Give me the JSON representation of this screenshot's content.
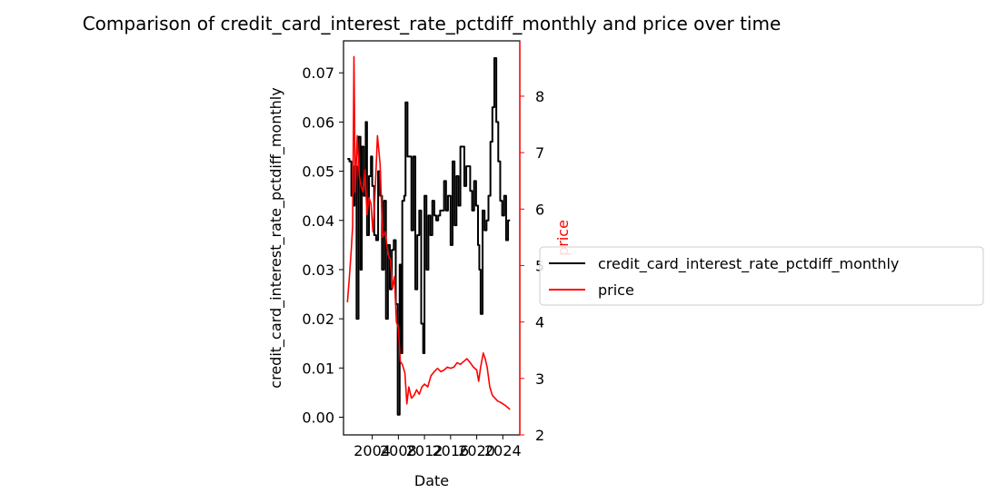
{
  "chart_data": {
    "type": "line",
    "title": "Comparison of credit_card_interest_rate_pctdiff_monthly and price over time",
    "xlabel": "Date",
    "ylabel_left": "credit_card_interest_rate_pctdiff_monthly",
    "ylabel_right": "price",
    "xlim": [
      1999.6,
      2026.6
    ],
    "ylim_left": [
      -0.0036,
      0.0765
    ],
    "ylim_right": [
      2.0,
      8.98
    ],
    "x_ticks": [
      2004,
      2008,
      2012,
      2016,
      2020,
      2024
    ],
    "x_tick_labels": [
      "2004",
      "2008",
      "2012",
      "2016",
      "2020",
      "2024"
    ],
    "y_ticks_left": [
      0.0,
      0.01,
      0.02,
      0.03,
      0.04,
      0.05,
      0.06,
      0.07
    ],
    "y_tick_labels_left": [
      "0.00",
      "0.01",
      "0.02",
      "0.03",
      "0.04",
      "0.05",
      "0.06",
      "0.07"
    ],
    "y_ticks_right": [
      2,
      3,
      4,
      5,
      6,
      7,
      8
    ],
    "y_tick_labels_right": [
      "2",
      "3",
      "4",
      "5",
      "6",
      "7",
      "8"
    ],
    "legend_placement": "center-right (outside)",
    "grid": false,
    "series": [
      {
        "name": "credit_card_interest_rate_pctdiff_monthly",
        "axis": "left",
        "color": "#000000",
        "step": true,
        "x": [
          2000.2,
          2000.5,
          2000.8,
          2001.1,
          2001.3,
          2001.6,
          2001.9,
          2002.2,
          2002.4,
          2002.7,
          2003.0,
          2003.2,
          2003.5,
          2003.8,
          2004.0,
          2004.3,
          2004.6,
          2004.9,
          2005.2,
          2005.5,
          2005.8,
          2006.1,
          2006.4,
          2006.7,
          2007.0,
          2007.3,
          2007.6,
          2007.9,
          2008.2,
          2008.4,
          2008.6,
          2008.9,
          2009.1,
          2009.4,
          2009.7,
          2010.0,
          2010.3,
          2010.6,
          2010.9,
          2011.2,
          2011.5,
          2011.8,
          2012.0,
          2012.3,
          2012.6,
          2012.9,
          2013.2,
          2013.5,
          2013.8,
          2014.1,
          2014.4,
          2014.7,
          2015.0,
          2015.3,
          2015.6,
          2016.0,
          2016.3,
          2016.6,
          2016.9,
          2017.2,
          2017.5,
          2017.8,
          2018.1,
          2018.4,
          2018.7,
          2019.0,
          2019.3,
          2019.6,
          2019.9,
          2020.2,
          2020.4,
          2020.6,
          2020.9,
          2021.2,
          2021.5,
          2021.8,
          2022.1,
          2022.4,
          2022.7,
          2023.0,
          2023.3,
          2023.6,
          2023.9,
          2024.2,
          2024.5,
          2024.8,
          2025.1
        ],
        "y": [
          0.0525,
          0.052,
          0.045,
          0.043,
          0.051,
          0.02,
          0.057,
          0.03,
          0.055,
          0.045,
          0.06,
          0.037,
          0.049,
          0.053,
          0.047,
          0.037,
          0.036,
          0.05,
          0.045,
          0.03,
          0.044,
          0.02,
          0.035,
          0.026,
          0.034,
          0.036,
          0.023,
          0.0005,
          0.031,
          0.013,
          0.044,
          0.045,
          0.064,
          0.053,
          0.053,
          0.038,
          0.053,
          0.026,
          0.037,
          0.042,
          0.019,
          0.013,
          0.045,
          0.03,
          0.041,
          0.037,
          0.044,
          0.041,
          0.04,
          0.041,
          0.042,
          0.042,
          0.048,
          0.042,
          0.045,
          0.035,
          0.052,
          0.039,
          0.049,
          0.043,
          0.055,
          0.055,
          0.047,
          0.051,
          0.051,
          0.046,
          0.042,
          0.048,
          0.043,
          0.035,
          0.03,
          0.021,
          0.042,
          0.038,
          0.04,
          0.045,
          0.056,
          0.063,
          0.073,
          0.06,
          0.052,
          0.044,
          0.041,
          0.045,
          0.036,
          0.04,
          0.04
        ]
      },
      {
        "name": "price",
        "axis": "right",
        "color": "#ff0000",
        "step": false,
        "x": [
          2000.2,
          2000.5,
          2000.8,
          2001.0,
          2001.2,
          2001.4,
          2001.7,
          2002.0,
          2002.3,
          2002.6,
          2002.9,
          2003.2,
          2003.5,
          2003.8,
          2004.1,
          2004.4,
          2004.8,
          2005.2,
          2005.6,
          2006.0,
          2006.4,
          2006.8,
          2007.1,
          2007.4,
          2007.7,
          2008.0,
          2008.3,
          2008.6,
          2009.0,
          2009.3,
          2009.6,
          2010.0,
          2010.4,
          2010.8,
          2011.2,
          2011.6,
          2012.0,
          2012.5,
          2013.0,
          2013.5,
          2014.0,
          2014.5,
          2015.0,
          2015.5,
          2016.0,
          2016.5,
          2017.0,
          2017.5,
          2018.0,
          2018.5,
          2019.0,
          2019.5,
          2020.0,
          2020.3,
          2020.6,
          2021.0,
          2021.3,
          2021.6,
          2022.0,
          2022.4,
          2022.8,
          2023.2,
          2023.6,
          2024.0,
          2024.4,
          2024.8,
          2025.1
        ],
        "y": [
          4.35,
          4.8,
          5.3,
          5.7,
          8.7,
          6.3,
          7.3,
          6.6,
          6.4,
          6.3,
          6.7,
          5.9,
          6.2,
          6.1,
          5.6,
          6.2,
          7.3,
          6.8,
          5.5,
          5.6,
          5.2,
          5.1,
          4.6,
          4.8,
          4.0,
          3.9,
          3.3,
          3.25,
          3.1,
          2.55,
          2.85,
          2.65,
          2.7,
          2.8,
          2.72,
          2.85,
          2.9,
          2.85,
          3.05,
          3.12,
          3.18,
          3.12,
          3.15,
          3.2,
          3.18,
          3.2,
          3.28,
          3.25,
          3.3,
          3.35,
          3.28,
          3.2,
          3.15,
          2.95,
          3.2,
          3.45,
          3.35,
          3.2,
          2.85,
          2.7,
          2.65,
          2.6,
          2.58,
          2.55,
          2.52,
          2.48,
          2.45
        ]
      }
    ]
  }
}
